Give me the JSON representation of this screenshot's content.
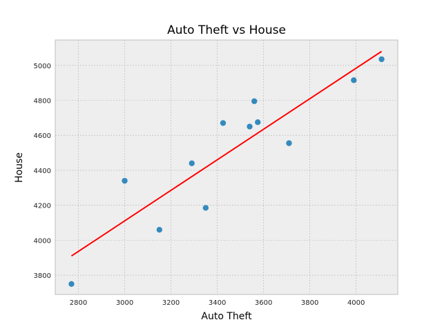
{
  "chart_data": {
    "type": "scatter",
    "title": "Auto Theft vs House",
    "xlabel": "Auto Theft",
    "ylabel": "House",
    "xlim": [
      2700,
      4180
    ],
    "ylim": [
      3690,
      5145
    ],
    "xticks": [
      2800,
      3000,
      3200,
      3400,
      3600,
      3800,
      4000
    ],
    "yticks": [
      3800,
      4000,
      4200,
      4400,
      4600,
      4800,
      5000
    ],
    "grid": true,
    "points": [
      {
        "x": 2770,
        "y": 3750
      },
      {
        "x": 3000,
        "y": 4340
      },
      {
        "x": 3150,
        "y": 4060
      },
      {
        "x": 3290,
        "y": 4440
      },
      {
        "x": 3350,
        "y": 4185
      },
      {
        "x": 3425,
        "y": 4670
      },
      {
        "x": 3540,
        "y": 4650
      },
      {
        "x": 3560,
        "y": 4795
      },
      {
        "x": 3575,
        "y": 4675
      },
      {
        "x": 3710,
        "y": 4555
      },
      {
        "x": 3990,
        "y": 4915
      },
      {
        "x": 4110,
        "y": 5035
      }
    ],
    "fit_line": {
      "x": [
        2770,
        4110
      ],
      "y": [
        3910,
        5080
      ]
    },
    "colors": {
      "points": "#348abd",
      "fit_line": "#ff0000",
      "plot_background": "#eeeeee",
      "grid": "#b2b2b2",
      "frame": "#bcbcbc"
    }
  }
}
